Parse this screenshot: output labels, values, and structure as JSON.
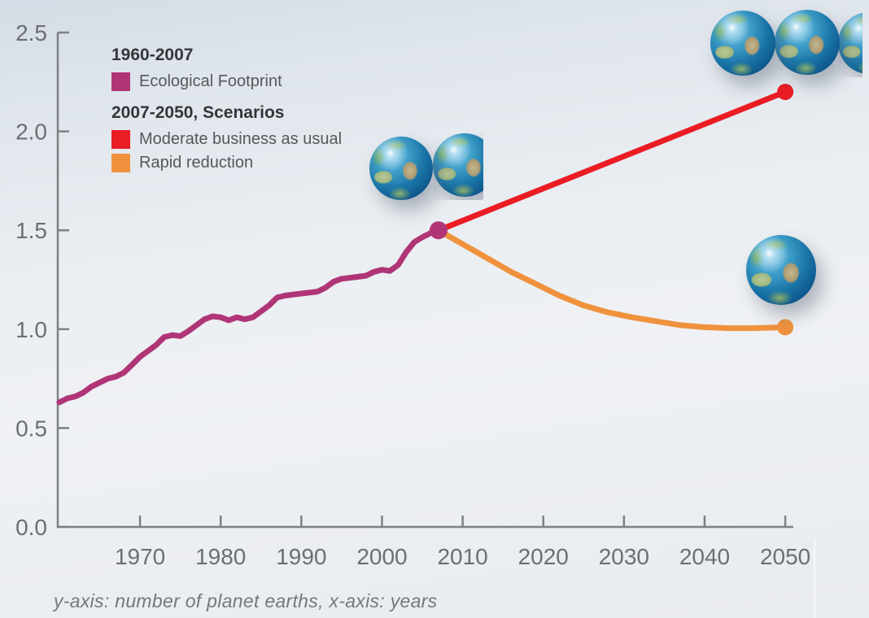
{
  "legend": {
    "period1_title": "1960-2007",
    "period2_title": "2007-2050, Scenarios",
    "items": [
      {
        "label": "Ecological Footprint",
        "color": "#b03577"
      },
      {
        "label": "Moderate business as usual",
        "color": "#ea1c24"
      },
      {
        "label": "Rapid reduction",
        "color": "#f0923d"
      }
    ]
  },
  "caption": "y-axis: number of planet earths, x-axis: years",
  "colors": {
    "ecological_footprint": "#b03577",
    "moderate_business_as_usual": "#ea1c24",
    "rapid_reduction": "#f0923d",
    "axis": "#7d8184",
    "tick_label": "#6b6f72"
  },
  "icons": [
    {
      "name": "earth-icon",
      "meaning": "planet earth globe"
    }
  ],
  "chart_data": {
    "type": "line",
    "title": "",
    "xlabel": "years",
    "ylabel": "number of planet earths",
    "xlim": [
      1959.8,
      2051
    ],
    "ylim": [
      0,
      2.5
    ],
    "x_ticks": [
      1970,
      1980,
      1990,
      2000,
      2010,
      2020,
      2030,
      2040,
      2050
    ],
    "y_ticks": [
      0.0,
      0.5,
      1.0,
      1.5,
      2.0,
      2.5
    ],
    "grid": false,
    "legend_position": "top-left",
    "series": [
      {
        "name": "Ecological Footprint",
        "period": "1960-2007",
        "color": "#b03577",
        "x": [
          1960,
          1961,
          1962,
          1963,
          1964,
          1965,
          1966,
          1967,
          1968,
          1969,
          1970,
          1971,
          1972,
          1973,
          1974,
          1975,
          1976,
          1977,
          1978,
          1979,
          1980,
          1981,
          1982,
          1983,
          1984,
          1985,
          1986,
          1987,
          1988,
          1989,
          1990,
          1991,
          1992,
          1993,
          1994,
          1995,
          1996,
          1997,
          1998,
          1999,
          2000,
          2001,
          2002,
          2003,
          2004,
          2005,
          2006,
          2007
        ],
        "values": [
          0.63,
          0.65,
          0.66,
          0.68,
          0.71,
          0.73,
          0.75,
          0.76,
          0.78,
          0.82,
          0.86,
          0.89,
          0.92,
          0.96,
          0.97,
          0.965,
          0.99,
          1.02,
          1.05,
          1.065,
          1.06,
          1.045,
          1.06,
          1.05,
          1.06,
          1.09,
          1.12,
          1.16,
          1.17,
          1.175,
          1.18,
          1.185,
          1.19,
          1.21,
          1.24,
          1.255,
          1.26,
          1.265,
          1.27,
          1.29,
          1.3,
          1.295,
          1.325,
          1.39,
          1.44,
          1.465,
          1.485,
          1.5
        ]
      },
      {
        "name": "Moderate business as usual",
        "period": "2007-2050",
        "color": "#ea1c24",
        "x": [
          2007,
          2050
        ],
        "values": [
          1.5,
          2.2
        ]
      },
      {
        "name": "Rapid reduction",
        "period": "2007-2050",
        "color": "#f0923d",
        "x": [
          2007,
          2010,
          2013,
          2016,
          2019,
          2022,
          2025,
          2028,
          2031,
          2034,
          2037,
          2040,
          2043,
          2046,
          2050
        ],
        "values": [
          1.5,
          1.43,
          1.36,
          1.29,
          1.23,
          1.17,
          1.12,
          1.085,
          1.06,
          1.04,
          1.02,
          1.01,
          1.005,
          1.005,
          1.01
        ]
      }
    ],
    "markers": [
      {
        "x": 2007,
        "y": 1.5,
        "color": "#b03577",
        "r": 11
      },
      {
        "x": 2050,
        "y": 2.2,
        "color": "#ea1c24",
        "r": 10
      },
      {
        "x": 2050,
        "y": 1.01,
        "color": "#f0923d",
        "r": 10
      }
    ],
    "annotations": [
      {
        "x": 2007,
        "y": 1.5,
        "icon": "earth",
        "earths_shown": 1.5
      },
      {
        "x": 2050,
        "y": 2.2,
        "icon": "earth",
        "earths_shown": 2.2
      },
      {
        "x": 2050,
        "y": 1.0,
        "icon": "earth",
        "earths_shown": 1.0
      }
    ]
  }
}
